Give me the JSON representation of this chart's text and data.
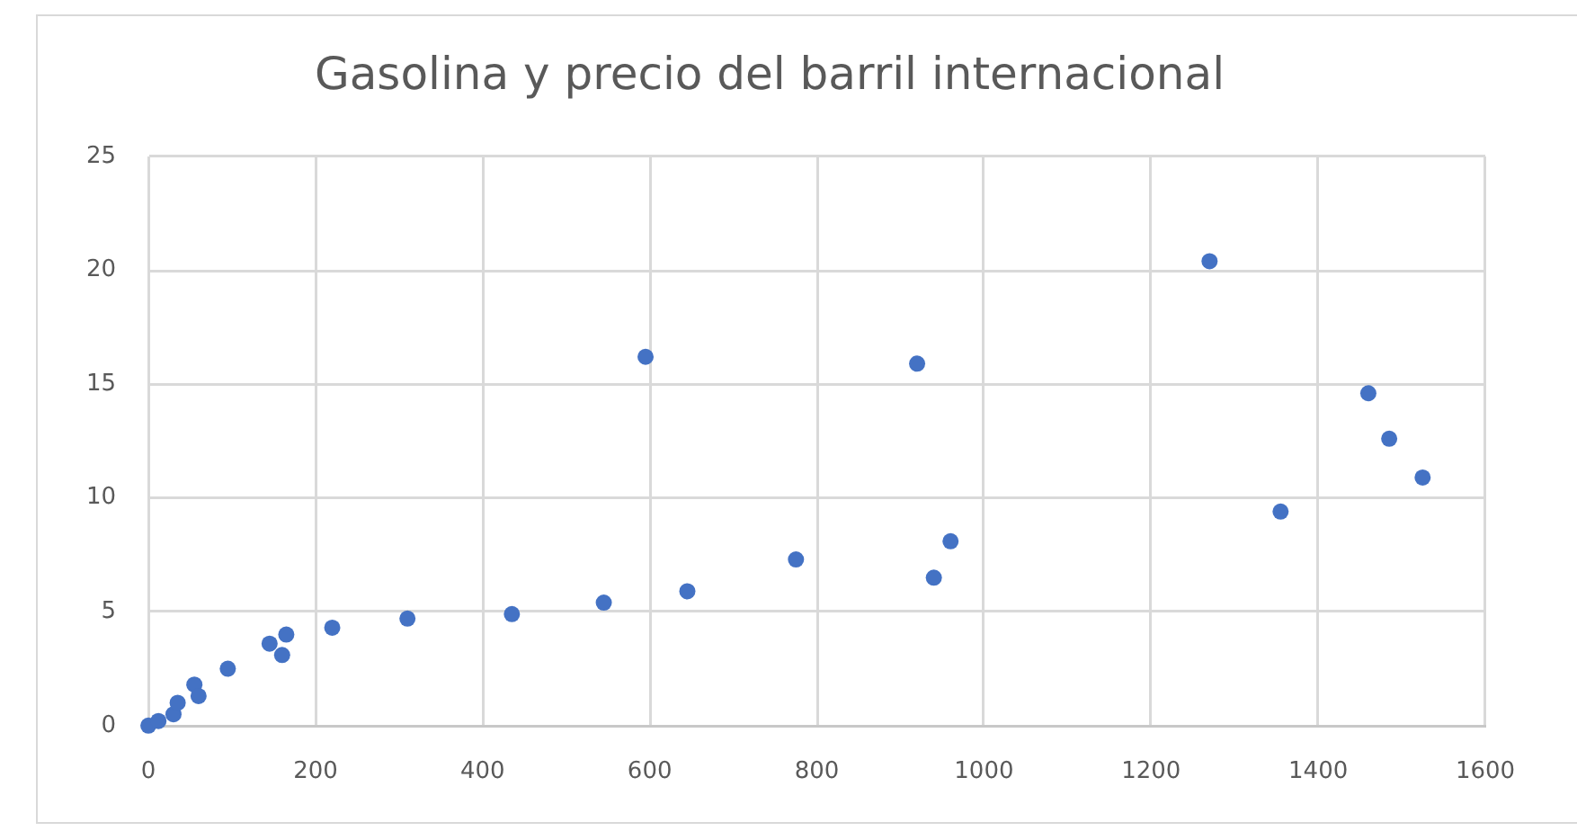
{
  "chart_data": {
    "type": "scatter",
    "title": "Gasolina y precio del barril internacional",
    "x": [
      0,
      12,
      30,
      35,
      55,
      60,
      95,
      145,
      160,
      165,
      220,
      310,
      435,
      545,
      595,
      645,
      775,
      920,
      940,
      960,
      1270,
      1355,
      1460,
      1485,
      1525
    ],
    "series": [
      {
        "color": "#4472c4",
        "values": [
          0,
          0.2,
          0.5,
          1.0,
          1.8,
          1.3,
          2.5,
          3.6,
          3.1,
          4.0,
          4.3,
          4.7,
          4.9,
          5.4,
          16.2,
          5.9,
          7.3,
          15.9,
          6.5,
          8.1,
          20.4,
          9.4,
          14.6,
          12.6,
          10.9
        ]
      }
    ],
    "xlim": [
      0,
      1600
    ],
    "xticks": [
      0,
      200,
      400,
      600,
      800,
      1000,
      1200,
      1400,
      1600
    ],
    "ylim": [
      0,
      25
    ],
    "yticks": [
      0,
      5,
      10,
      15,
      20,
      25
    ],
    "grid": true,
    "legend": false,
    "marker": "circle"
  }
}
